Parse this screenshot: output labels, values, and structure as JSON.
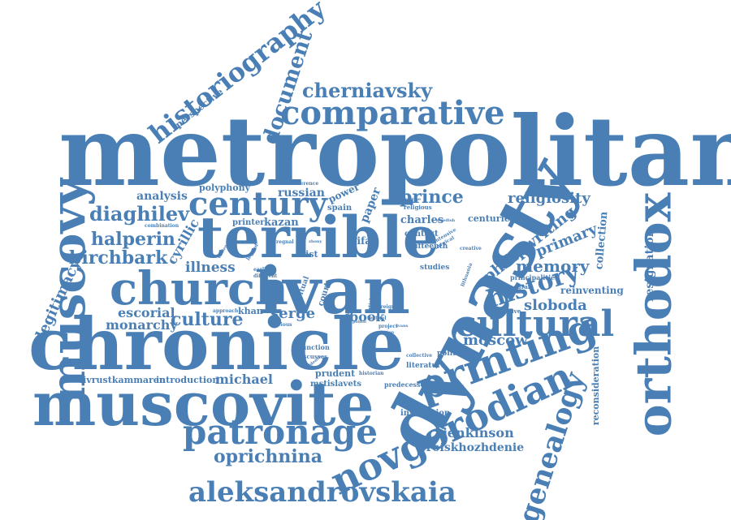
{
  "color": "#4a7fb5",
  "words": [
    {
      "id": "metropolitan",
      "text": "metropolitan"
    },
    {
      "id": "chronicle",
      "text": "chronicle"
    },
    {
      "id": "muscovite",
      "text": "muscovite"
    },
    {
      "id": "dynasty",
      "text": "dynasty"
    },
    {
      "id": "ivan",
      "text": "ivan"
    },
    {
      "id": "terrible",
      "text": "terrible"
    },
    {
      "id": "church",
      "text": "church"
    },
    {
      "id": "muscovy",
      "text": "muscovy"
    },
    {
      "id": "orthodox",
      "text": "orthodox"
    },
    {
      "id": "printing",
      "text": "printing"
    },
    {
      "id": "novgorodian",
      "text": "novgorodian"
    },
    {
      "id": "comparative",
      "text": "comparative"
    },
    {
      "id": "cultural",
      "text": "cultural"
    },
    {
      "id": "patronage",
      "text": "patronage"
    },
    {
      "id": "aleksandrovskaia",
      "text": "aleksandrovskaia"
    },
    {
      "id": "historiography",
      "text": "historiography"
    },
    {
      "id": "genealogy",
      "text": "genealogy"
    },
    {
      "id": "century",
      "text": "century"
    },
    {
      "id": "cherniavsky",
      "text": "cherniavsky"
    },
    {
      "id": "document",
      "text": "document"
    },
    {
      "id": "history",
      "text": "history"
    },
    {
      "id": "diaghilev",
      "text": "diaghilev"
    },
    {
      "id": "halperin",
      "text": "halperin"
    },
    {
      "id": "birchbark",
      "text": "birchbark"
    },
    {
      "id": "culture",
      "text": "culture"
    },
    {
      "id": "oprichnina",
      "text": "oprichnina"
    },
    {
      "id": "prince",
      "text": "prince"
    },
    {
      "id": "religiosity",
      "text": "religiosity"
    },
    {
      "id": "memory",
      "text": "memory"
    },
    {
      "id": "philipwriting",
      "text": "philipwriting"
    },
    {
      "id": "primary",
      "text": "primary"
    },
    {
      "id": "moscow",
      "text": "moscow"
    },
    {
      "id": "sloboda",
      "text": "sloboda"
    },
    {
      "id": "resignation",
      "text": "resignation"
    },
    {
      "id": "legitimacy",
      "text": "legitimacy"
    },
    {
      "id": "jenkinson",
      "text": "jenkinson"
    },
    {
      "id": "proiskhozhdenie",
      "text": "proiskhozhdenie"
    },
    {
      "id": "michael",
      "text": "michael"
    },
    {
      "id": "escorial",
      "text": "escorial"
    },
    {
      "id": "monarchy",
      "text": "monarchy"
    },
    {
      "id": "illness",
      "text": "illness"
    },
    {
      "id": "serge",
      "text": "serge"
    },
    {
      "id": "book",
      "text": "book"
    },
    {
      "id": "cyrillic",
      "text": "cyrillic"
    },
    {
      "id": "analysis",
      "text": "analysis"
    },
    {
      "id": "russian",
      "text": "russian"
    },
    {
      "id": "paper",
      "text": "paper"
    },
    {
      "id": "collection",
      "text": "collection"
    },
    {
      "id": "reconsideration",
      "text": "reconsideration"
    },
    {
      "id": "reinventing",
      "text": "reinventing"
    },
    {
      "id": "charles",
      "text": "charles"
    },
    {
      "id": "centuries",
      "text": "centuries"
    },
    {
      "id": "kazan",
      "text": "kazan"
    },
    {
      "id": "lifar",
      "text": "lifar"
    },
    {
      "id": "perspective",
      "text": "perspective"
    },
    {
      "id": "polyphony",
      "text": "polyphony"
    },
    {
      "id": "power",
      "text": "power"
    },
    {
      "id": "spain",
      "text": "spain"
    },
    {
      "id": "printer",
      "text": "printer"
    },
    {
      "id": "livrustkammaren",
      "text": "livrustkammaren"
    },
    {
      "id": "introduction",
      "text": "introduction"
    },
    {
      "id": "prudent",
      "text": "prudent"
    },
    {
      "id": "mstislavets",
      "text": "mstislavets"
    },
    {
      "id": "inscription",
      "text": "inscription"
    },
    {
      "id": "predecessor",
      "text": "predecessor"
    },
    {
      "id": "literature",
      "text": "literature"
    },
    {
      "id": "political",
      "text": "political"
    },
    {
      "id": "list",
      "text": "list"
    },
    {
      "id": "khan",
      "text": "khan"
    },
    {
      "id": "court",
      "text": "court"
    },
    {
      "id": "context",
      "text": "context"
    },
    {
      "id": "fifteenth",
      "text": "fifteenth"
    },
    {
      "id": "principalities",
      "text": "principalities"
    },
    {
      "id": "ideogram",
      "text": "ideogram"
    },
    {
      "id": "distinctive",
      "text": "distinctive"
    },
    {
      "id": "studies",
      "text": "studies"
    },
    {
      "id": "function",
      "text": "function"
    },
    {
      "id": "discusses",
      "text": "discusses"
    },
    {
      "id": "dynastic",
      "text": "dynastic"
    },
    {
      "id": "ritual",
      "text": "ritual"
    },
    {
      "id": "reference",
      "text": "reference"
    },
    {
      "id": "combination",
      "text": "combination"
    },
    {
      "id": "approach",
      "text": "approach"
    },
    {
      "id": "various",
      "text": "various"
    },
    {
      "id": "textual",
      "text": "textual"
    },
    {
      "id": "project",
      "text": "project"
    },
    {
      "id": "historian",
      "text": "historian"
    },
    {
      "id": "collective",
      "text": "collective"
    },
    {
      "id": "intensive",
      "text": "intensive"
    },
    {
      "id": "liturgical",
      "text": "liturgical"
    },
    {
      "id": "swedish",
      "text": "swedish"
    },
    {
      "id": "religious",
      "text": "religious"
    },
    {
      "id": "creative",
      "text": "creative"
    },
    {
      "id": "prestige",
      "text": "prestige"
    },
    {
      "id": "regnal",
      "text": "regnal"
    },
    {
      "id": "legend",
      "text": "legend"
    },
    {
      "id": "earliest",
      "text": "earliest"
    },
    {
      "id": "different",
      "text": "different"
    },
    {
      "id": "foreign",
      "text": "foreign"
    },
    {
      "id": "article",
      "text": "article"
    },
    {
      "id": "source",
      "text": "source"
    },
    {
      "id": "politic",
      "text": "politic"
    },
    {
      "id": "relation",
      "text": "relation"
    },
    {
      "id": "ivans",
      "text": "ivans"
    },
    {
      "id": "zhony",
      "text": "zhony"
    },
    {
      "id": "chalenge",
      "text": "chalenge"
    },
    {
      "id": "evidence",
      "text": "evidence"
    },
    {
      "id": "lithuania",
      "text": "lithuania"
    }
  ]
}
